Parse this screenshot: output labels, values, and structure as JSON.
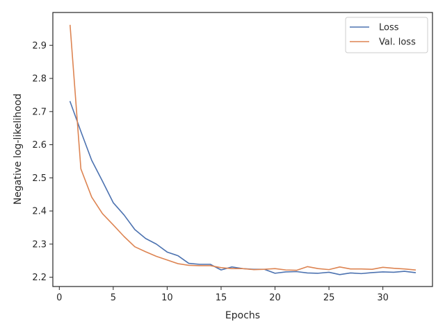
{
  "chart_data": {
    "type": "line",
    "title": "",
    "xlabel": "Epochs",
    "ylabel": "Negative log-likelihood",
    "xlim": [
      -0.6,
      34.6
    ],
    "ylim": [
      2.172,
      2.999
    ],
    "xticks": [
      0,
      5,
      10,
      15,
      20,
      25,
      30
    ],
    "yticks": [
      2.2,
      2.3,
      2.4,
      2.5,
      2.6,
      2.7,
      2.8,
      2.9
    ],
    "ytick_labels": [
      "2.2",
      "2.3",
      "2.4",
      "2.5",
      "2.6",
      "2.7",
      "2.8",
      "2.9"
    ],
    "grid": false,
    "legend_position": "top-right",
    "x": [
      1,
      2,
      3,
      4,
      5,
      6,
      7,
      8,
      9,
      10,
      11,
      12,
      13,
      14,
      15,
      16,
      17,
      18,
      19,
      20,
      21,
      22,
      23,
      24,
      25,
      26,
      27,
      28,
      29,
      30,
      31,
      32,
      33
    ],
    "series": [
      {
        "name": "Loss",
        "color": "#4c72b0",
        "values": [
          2.73,
          2.64,
          2.553,
          2.49,
          2.425,
          2.388,
          2.344,
          2.317,
          2.3,
          2.276,
          2.265,
          2.242,
          2.239,
          2.239,
          2.222,
          2.231,
          2.226,
          2.224,
          2.224,
          2.212,
          2.216,
          2.217,
          2.213,
          2.212,
          2.215,
          2.208,
          2.213,
          2.211,
          2.214,
          2.216,
          2.215,
          2.218,
          2.214
        ]
      },
      {
        "name": "Val. loss",
        "color": "#dd8452",
        "values": [
          2.96,
          2.527,
          2.442,
          2.392,
          2.358,
          2.323,
          2.292,
          2.277,
          2.263,
          2.252,
          2.241,
          2.236,
          2.235,
          2.235,
          2.229,
          2.226,
          2.226,
          2.223,
          2.224,
          2.226,
          2.222,
          2.221,
          2.232,
          2.226,
          2.223,
          2.231,
          2.225,
          2.225,
          2.224,
          2.23,
          2.227,
          2.225,
          2.222
        ]
      }
    ]
  }
}
